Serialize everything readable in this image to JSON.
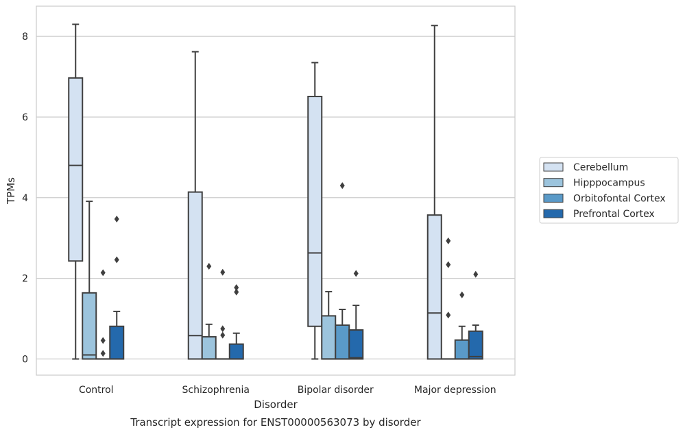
{
  "chart_data": {
    "type": "box",
    "title": "Transcript expression for ENST00000563073 by disorder",
    "xlabel": "Disorder",
    "ylabel": "TPMs",
    "ylim": [
      -0.4,
      8.75
    ],
    "yticks": [
      0,
      2,
      4,
      6,
      8
    ],
    "grid": "horizontal",
    "legend_position": "right",
    "categories": [
      "Control",
      "Schizophrenia",
      "Bipolar disorder",
      "Major depression"
    ],
    "series": [
      {
        "name": "Cerebellum",
        "color": "#d4e2f2",
        "boxes": [
          {
            "whislo": 0,
            "q1": 2.43,
            "med": 4.8,
            "q3": 6.97,
            "whishi": 8.3,
            "fliers": []
          },
          {
            "whislo": 0,
            "q1": 0,
            "med": 0.58,
            "q3": 4.14,
            "whishi": 7.62,
            "fliers": []
          },
          {
            "whislo": 0,
            "q1": 0.81,
            "med": 2.63,
            "q3": 6.51,
            "whishi": 7.35,
            "fliers": []
          },
          {
            "whislo": 0,
            "q1": 0,
            "med": 1.14,
            "q3": 3.57,
            "whishi": 8.27,
            "fliers": []
          }
        ]
      },
      {
        "name": "Hipppocampus",
        "color": "#9cc4dd",
        "boxes": [
          {
            "whislo": 0,
            "q1": 0,
            "med": 0.1,
            "q3": 1.64,
            "whishi": 3.91,
            "fliers": []
          },
          {
            "whislo": 0,
            "q1": 0,
            "med": 0,
            "q3": 0.55,
            "whishi": 0.86,
            "fliers": [
              2.3
            ]
          },
          {
            "whislo": 0,
            "q1": 0,
            "med": 0,
            "q3": 1.07,
            "whishi": 1.67,
            "fliers": []
          },
          {
            "whislo": 0,
            "q1": 0,
            "med": 0,
            "q3": 0,
            "whishi": 0,
            "fliers": [
              1.09,
              2.34,
              2.93
            ]
          }
        ]
      },
      {
        "name": "Orbitofontal Cortex",
        "color": "#5a9ac8",
        "boxes": [
          {
            "whislo": 0,
            "q1": 0,
            "med": 0,
            "q3": 0,
            "whishi": 0,
            "fliers": [
              0.14,
              0.46,
              2.14
            ]
          },
          {
            "whislo": 0,
            "q1": 0,
            "med": 0,
            "q3": 0,
            "whishi": 0,
            "fliers": [
              0.59,
              0.75,
              2.15
            ]
          },
          {
            "whislo": 0,
            "q1": 0,
            "med": 0,
            "q3": 0.84,
            "whishi": 1.23,
            "fliers": [
              4.3
            ]
          },
          {
            "whislo": 0,
            "q1": 0,
            "med": 0,
            "q3": 0.47,
            "whishi": 0.81,
            "fliers": [
              1.59
            ]
          }
        ]
      },
      {
        "name": "Prefrontal Cortex",
        "color": "#2469ac",
        "boxes": [
          {
            "whislo": 0,
            "q1": 0,
            "med": 0,
            "q3": 0.81,
            "whishi": 1.18,
            "fliers": [
              2.46,
              3.47
            ]
          },
          {
            "whislo": 0,
            "q1": 0,
            "med": 0,
            "q3": 0.37,
            "whishi": 0.64,
            "fliers": [
              1.66,
              1.77
            ]
          },
          {
            "whislo": 0,
            "q1": 0,
            "med": 0.03,
            "q3": 0.72,
            "whishi": 1.33,
            "fliers": [
              2.12
            ]
          },
          {
            "whislo": 0,
            "q1": 0,
            "med": 0.06,
            "q3": 0.69,
            "whishi": 0.84,
            "fliers": [
              2.1
            ]
          }
        ]
      }
    ]
  }
}
